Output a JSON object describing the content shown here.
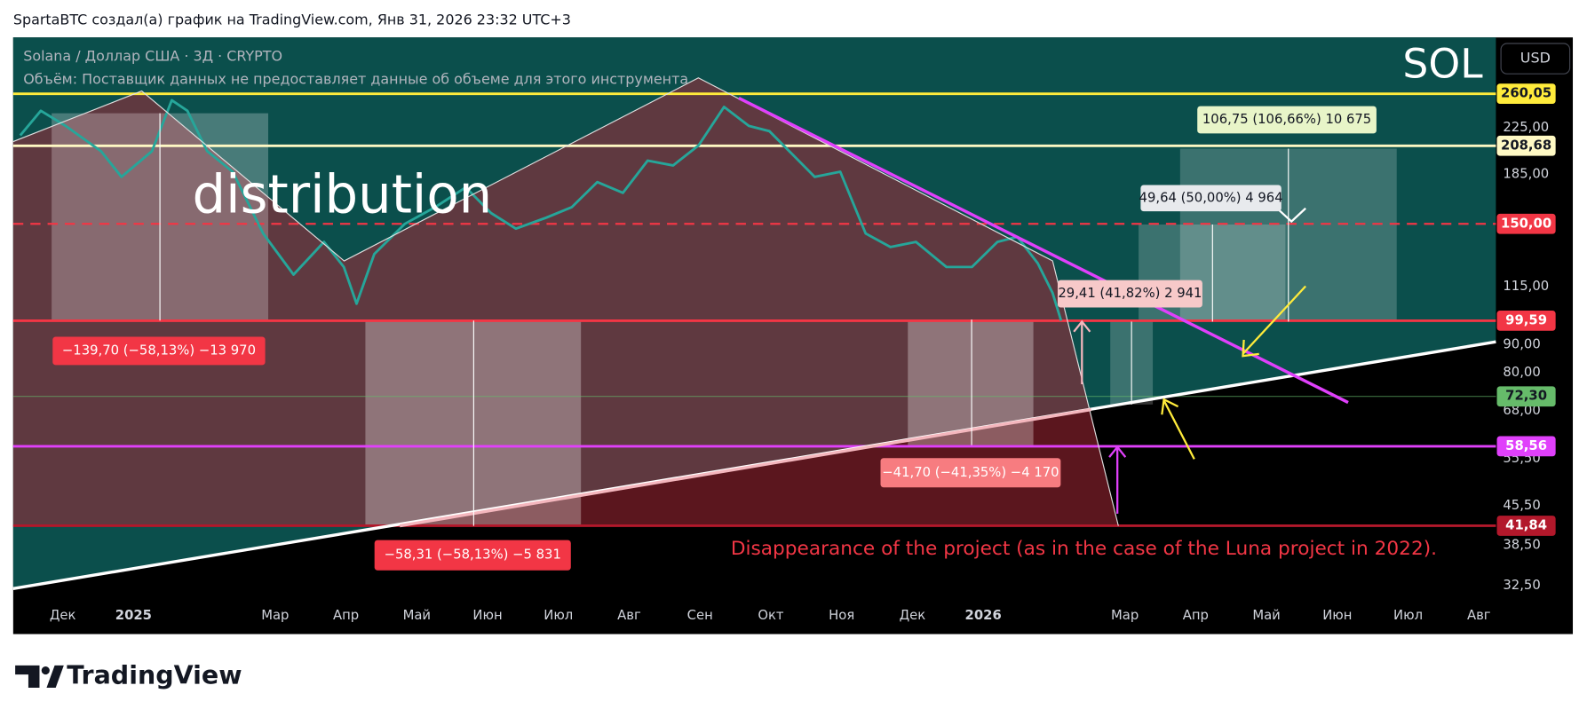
{
  "header": {
    "title": "SpartaBTC создал(а) график на TradingView.com, Янв 31, 2026 23:32 UTC+3"
  },
  "chart_data": {
    "type": "line",
    "title": "Solana / Доллар США · 3Д · CRYPTO",
    "subtitle": "Объём: Поставщик данных не предоставляет данные об объеме для этого инструмента",
    "symbol": "SOL",
    "currency": "USD",
    "color": "#26a69a",
    "log_scale": true,
    "x": [
      -0.6,
      -0.31,
      0.04,
      0.54,
      0.83,
      1.26,
      1.54,
      1.76,
      2.04,
      2.4,
      2.83,
      3.26,
      3.69,
      3.97,
      4.15,
      4.4,
      4.83,
      5.26,
      5.69,
      6.05,
      6.4,
      6.83,
      7.19,
      7.55,
      7.91,
      8.26,
      8.62,
      8.98,
      9.34,
      9.69,
      9.98,
      10.26,
      10.62,
      10.98,
      11.34,
      11.69,
      12.05,
      12.48,
      12.84,
      13.2,
      13.48,
      13.77,
      13.98,
      14.1
    ],
    "values": [
      218,
      242,
      227,
      204,
      183,
      204,
      253,
      242,
      204,
      187,
      144,
      121,
      139,
      125,
      107,
      132,
      150,
      161,
      175,
      157,
      147,
      154,
      161,
      179,
      171,
      196,
      192,
      209,
      246,
      227,
      222,
      204,
      183,
      187,
      144,
      136,
      139,
      125,
      125,
      139,
      142,
      127,
      112,
      99.59
    ],
    "xlim": [
      -0.7,
      20.24
    ],
    "xticks": [
      {
        "value": 0,
        "label": "Дек"
      },
      {
        "value": 1,
        "label": "2025"
      },
      {
        "value": 3,
        "label": "Мар"
      },
      {
        "value": 4,
        "label": "Апр"
      },
      {
        "value": 5,
        "label": "Май"
      },
      {
        "value": 6,
        "label": "Июн"
      },
      {
        "value": 7,
        "label": "Июл"
      },
      {
        "value": 8,
        "label": "Авг"
      },
      {
        "value": 9,
        "label": "Сен"
      },
      {
        "value": 10,
        "label": "Окт"
      },
      {
        "value": 11,
        "label": "Ноя"
      },
      {
        "value": 12,
        "label": "Дек"
      },
      {
        "value": 13,
        "label": "2026"
      },
      {
        "value": 15,
        "label": "Мар"
      },
      {
        "value": 16,
        "label": "Апр"
      },
      {
        "value": 17,
        "label": "Май"
      },
      {
        "value": 18,
        "label": "Июн"
      },
      {
        "value": 19,
        "label": "Июл"
      },
      {
        "value": 20,
        "label": "Авг"
      }
    ],
    "ylim": [
      31,
      330
    ],
    "yticks": [
      {
        "value": 225,
        "label": "225,00"
      },
      {
        "value": 185,
        "label": "185,00"
      },
      {
        "value": 115,
        "label": "115,00"
      },
      {
        "value": 90,
        "label": "90,00"
      },
      {
        "value": 80,
        "label": "80,00"
      },
      {
        "value": 68,
        "label": "68,00"
      },
      {
        "value": 55.5,
        "label": "55,50"
      },
      {
        "value": 45.5,
        "label": "45,50"
      },
      {
        "value": 38.5,
        "label": "38,50"
      },
      {
        "value": 32.5,
        "label": "32,50"
      }
    ],
    "levels": [
      {
        "value": 260.05,
        "label": "260,05",
        "color": "#ffeb3b",
        "text_color": "#131722",
        "style": "solid"
      },
      {
        "value": 208.68,
        "label": "208,68",
        "color": "#fff9c4",
        "text_color": "#131722",
        "style": "solid"
      },
      {
        "value": 150,
        "label": "150,00",
        "color": "#f23645",
        "text_color": "#ffffff",
        "style": "dashed"
      },
      {
        "value": 99.59,
        "label": "99,59",
        "color": "#f23645",
        "text_color": "#ffffff",
        "style": "solid"
      },
      {
        "value": 72.3,
        "label": "72,30",
        "color": "#66bb6a",
        "text_color": "#131722",
        "style": "thin"
      },
      {
        "value": 58.56,
        "label": "58,56",
        "color": "#e040fb",
        "text_color": "#ffffff",
        "style": "solid"
      },
      {
        "value": 41.84,
        "label": "41,84",
        "color": "#b2182b",
        "text_color": "#ffffff",
        "style": "solid"
      }
    ],
    "measurements": [
      "−139,70 (−58,13%) −13 970",
      "−58,31 (−58,13%) −5 831",
      "−41,70 (−41,35%) −4 170",
      "29,41 (41,82%) 2 941",
      "49,64 (50,00%) 4 964",
      "106,75 (106,66%) 10 675"
    ],
    "annotations": [
      "distribution",
      "Disappearance of the project (as in the case of the Luna project in 2022)."
    ]
  },
  "footer": {
    "brand": "TradingView"
  }
}
